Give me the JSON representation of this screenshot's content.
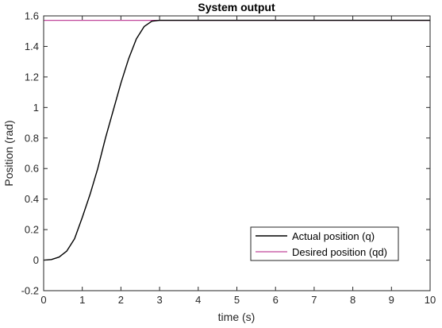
{
  "chart_data": {
    "type": "line",
    "title": "System output",
    "xlabel": "time (s)",
    "ylabel": "Position (rad)",
    "xlim": [
      0,
      10
    ],
    "ylim": [
      -0.2,
      1.6
    ],
    "xticks": [
      0,
      1,
      2,
      3,
      4,
      5,
      6,
      7,
      8,
      9,
      10
    ],
    "yticks": [
      -0.2,
      0,
      0.2,
      0.4,
      0.6,
      0.8,
      1,
      1.2,
      1.4,
      1.6
    ],
    "ytick_labels": [
      "-0.2",
      "0",
      "0.2",
      "0.4",
      "0.6",
      "0.8",
      "1",
      "1.2",
      "1.4",
      "1.6"
    ],
    "grid": false,
    "legend_position": "bottom-right",
    "series": [
      {
        "name": "Actual position (q)",
        "color": "#000000",
        "x": [
          0,
          0.2,
          0.4,
          0.6,
          0.8,
          1.0,
          1.2,
          1.4,
          1.6,
          1.8,
          2.0,
          2.2,
          2.4,
          2.6,
          2.8,
          3.0,
          3.2,
          3.5,
          4,
          5,
          6,
          7,
          8,
          9,
          10
        ],
        "y": [
          0,
          0.004,
          0.02,
          0.06,
          0.14,
          0.28,
          0.43,
          0.6,
          0.8,
          0.98,
          1.16,
          1.32,
          1.45,
          1.53,
          1.565,
          1.571,
          1.571,
          1.571,
          1.571,
          1.571,
          1.571,
          1.571,
          1.571,
          1.571,
          1.571
        ]
      },
      {
        "name": "Desired position (qd)",
        "color": "#c0469a",
        "x": [
          0,
          10
        ],
        "y": [
          1.5708,
          1.5708
        ]
      }
    ]
  }
}
